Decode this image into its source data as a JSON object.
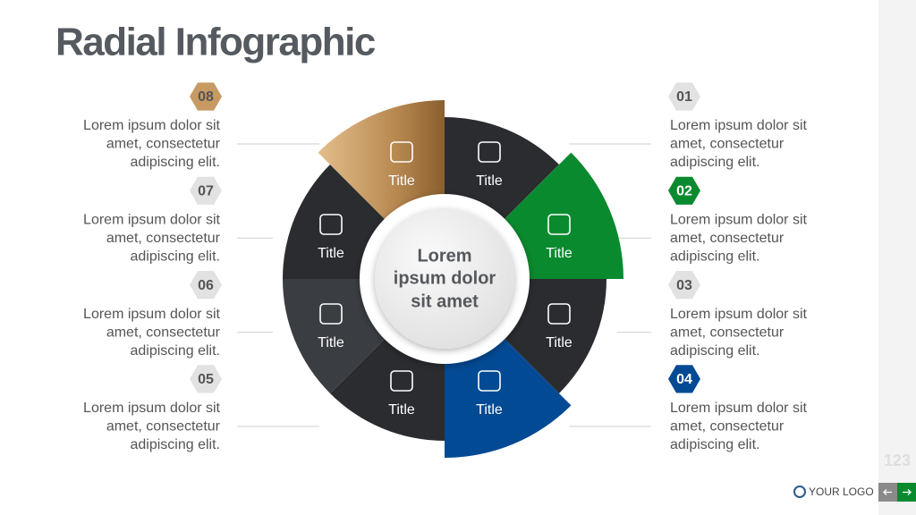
{
  "header": {
    "title": "Radial Infographic"
  },
  "center": {
    "lines": [
      "Lorem",
      "ipsum dolor",
      "sit amet"
    ]
  },
  "segments": [
    {
      "label": "Title",
      "color": "#2a2c30"
    },
    {
      "label": "Title",
      "color": "#0a8a2e"
    },
    {
      "label": "Title",
      "color": "#2a2c30"
    },
    {
      "label": "Title",
      "color": "#034a94"
    },
    {
      "label": "Title",
      "color": "#2a2c30"
    },
    {
      "label": "Title",
      "color": "#3a3d42"
    },
    {
      "label": "Title",
      "color": "#2a2c30"
    },
    {
      "label": "Title",
      "color": "#c69a62"
    }
  ],
  "items": [
    {
      "number": "01",
      "lines": [
        "Lorem ipsum dolor sit",
        "amet, consectetur",
        "adipiscing elit."
      ]
    },
    {
      "number": "02",
      "lines": [
        "Lorem ipsum dolor sit",
        "amet, consectetur",
        "adipiscing elit."
      ]
    },
    {
      "number": "03",
      "lines": [
        "Lorem ipsum dolor sit",
        "amet, consectetur",
        "adipiscing elit."
      ]
    },
    {
      "number": "04",
      "lines": [
        "Lorem ipsum dolor sit",
        "amet, consectetur",
        "adipiscing elit."
      ]
    },
    {
      "number": "05",
      "lines": [
        "Lorem ipsum dolor sit",
        "amet, consectetur",
        "adipiscing elit."
      ]
    },
    {
      "number": "06",
      "lines": [
        "Lorem ipsum dolor sit",
        "amet, consectetur",
        "adipiscing elit."
      ]
    },
    {
      "number": "07",
      "lines": [
        "Lorem ipsum dolor sit",
        "amet, consectetur",
        "adipiscing elit."
      ]
    },
    {
      "number": "08",
      "lines": [
        "Lorem ipsum dolor sit",
        "amet, consectetur",
        "adipiscing elit."
      ]
    }
  ],
  "footer": {
    "page": "123",
    "logo": "YOUR LOGO"
  }
}
